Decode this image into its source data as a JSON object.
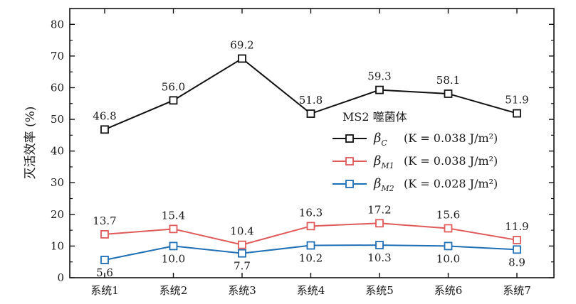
{
  "chart_data": {
    "type": "line",
    "title": "",
    "xlabel": "",
    "ylabel": "灭活效率 (%)",
    "ylim": [
      0,
      85
    ],
    "yticks": [
      0,
      10,
      20,
      30,
      40,
      50,
      60,
      70,
      80
    ],
    "grid": false,
    "legend_placement": "center-right",
    "legend_title": "MS2 噬菌体",
    "categories": [
      "系统1",
      "系统2",
      "系统3",
      "系统4",
      "系统5",
      "系统6",
      "系统7"
    ],
    "series": [
      {
        "name": "βC",
        "legend_symbol": "β",
        "legend_sub": "C",
        "legend_detail": "(K = 0.038 J/m²)",
        "color": "#111111",
        "marker": "open-square",
        "label_position": "above",
        "values": [
          46.8,
          56.0,
          69.2,
          51.8,
          59.3,
          58.1,
          51.9
        ],
        "labels": [
          "46.8",
          "56.0",
          "69.2",
          "51.8",
          "59.3",
          "58.1",
          "51.9"
        ]
      },
      {
        "name": "βM1",
        "legend_symbol": "β",
        "legend_sub": "M1",
        "legend_detail": "(K = 0.038 J/m²)",
        "color": "#e05a5a",
        "marker": "open-square",
        "label_position": "above",
        "values": [
          13.7,
          15.4,
          10.4,
          16.3,
          17.2,
          15.6,
          11.9
        ],
        "labels": [
          "13.7",
          "15.4",
          "10.4",
          "16.3",
          "17.2",
          "15.6",
          "11.9"
        ]
      },
      {
        "name": "βM2",
        "legend_symbol": "β",
        "legend_sub": "M2",
        "legend_detail": "(K = 0.028 J/m²)",
        "color": "#1f6fb5",
        "marker": "open-square",
        "label_position": "below",
        "values": [
          5.6,
          10.0,
          7.7,
          10.2,
          10.3,
          10.0,
          8.9
        ],
        "labels": [
          "5.6",
          "10.0",
          "7.7",
          "10.2",
          "10.3",
          "10.0",
          "8.9"
        ]
      }
    ]
  }
}
